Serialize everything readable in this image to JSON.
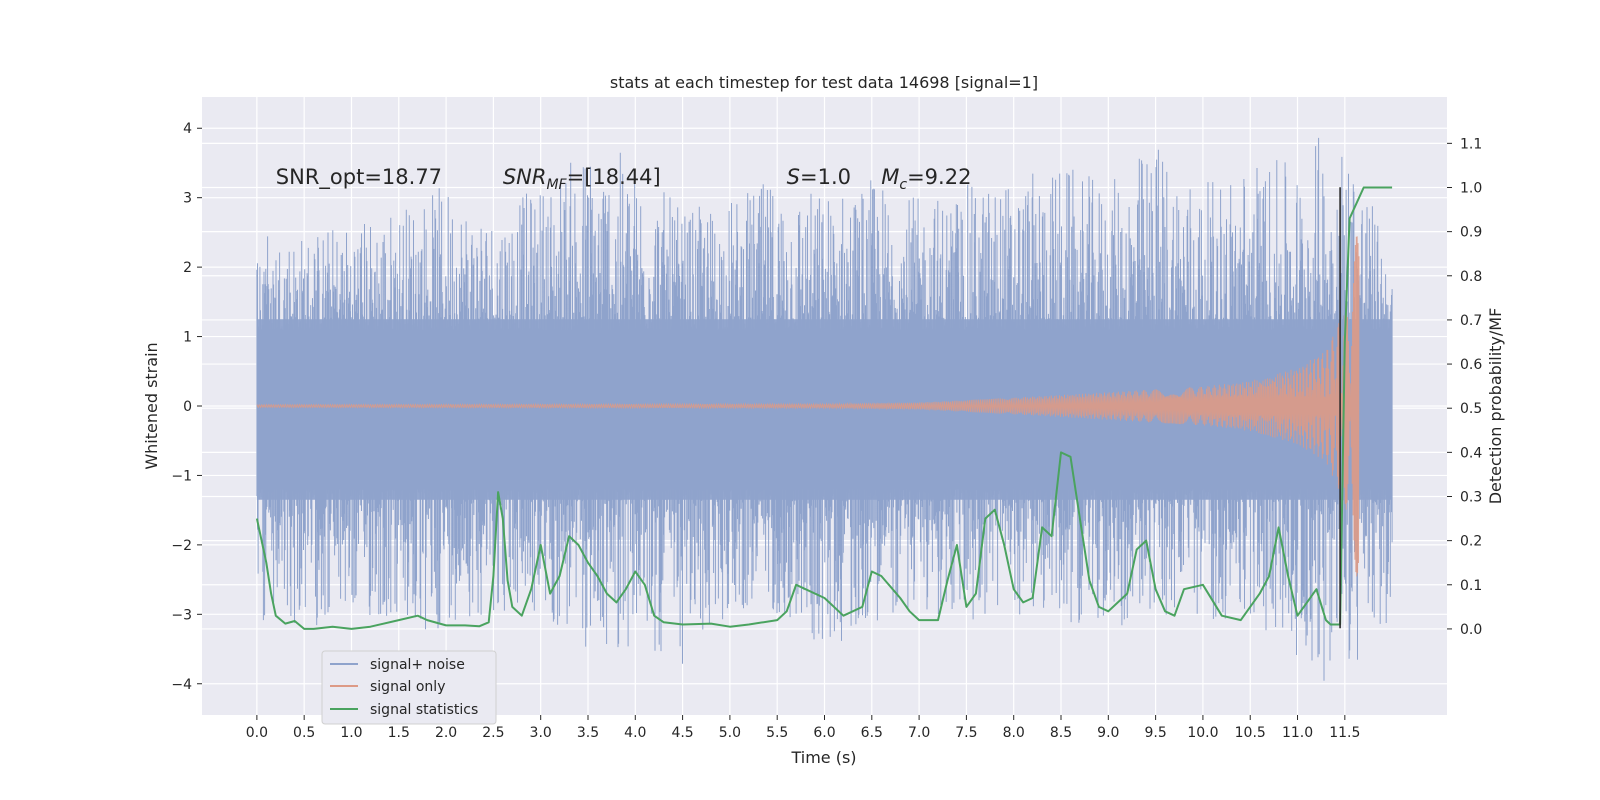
{
  "chart_data": {
    "type": "line",
    "title": "stats at each timestep for test data 14698 [signal=1]",
    "xlabel": "Time (s)",
    "ylabel_left": "Whitened strain",
    "ylabel_right": "Detection probability/MF",
    "xlim": [
      -0.58,
      12.58
    ],
    "ylim_left": [
      -4.45,
      4.45
    ],
    "ylim_right": [
      -0.195,
      1.205
    ],
    "x_ticks": [
      0.0,
      0.5,
      1.0,
      1.5,
      2.0,
      2.5,
      3.0,
      3.5,
      4.0,
      4.5,
      5.0,
      5.5,
      6.0,
      6.5,
      7.0,
      7.5,
      8.0,
      8.5,
      9.0,
      9.5,
      10.0,
      10.5,
      11.0,
      11.5
    ],
    "x_tick_labels": [
      "0.0",
      "0.5",
      "1.0",
      "1.5",
      "2.0",
      "2.5",
      "3.0",
      "3.5",
      "4.0",
      "4.5",
      "5.0",
      "5.5",
      "6.0",
      "6.5",
      "7.0",
      "7.5",
      "8.0",
      "8.5",
      "9.0",
      "9.5",
      "10.0",
      "10.5",
      "11.0",
      "11.5"
    ],
    "y_left_ticks": [
      -4,
      -3,
      -2,
      -1,
      0,
      1,
      2,
      3,
      4
    ],
    "y_left_tick_labels": [
      "−4",
      "−3",
      "−2",
      "−1",
      "0",
      "1",
      "2",
      "3",
      "4"
    ],
    "y_right_ticks": [
      0.0,
      0.1,
      0.2,
      0.3,
      0.4,
      0.5,
      0.6,
      0.7,
      0.8,
      0.9,
      1.0,
      1.1
    ],
    "y_right_tick_labels": [
      "0.0",
      "0.1",
      "0.2",
      "0.3",
      "0.4",
      "0.5",
      "0.6",
      "0.7",
      "0.8",
      "0.9",
      "1.0",
      "1.1"
    ],
    "grid": true,
    "legend_position": "lower-left",
    "series": [
      {
        "name": "signal+ noise",
        "axis": "left",
        "color": "#8fa3cc",
        "style": "dense noise trace",
        "x_range": [
          0.0,
          12.0
        ],
        "envelope_upper": [
          [
            0.0,
            2.6
          ],
          [
            0.5,
            2.5
          ],
          [
            1.0,
            2.7
          ],
          [
            1.5,
            2.9
          ],
          [
            2.0,
            3.2
          ],
          [
            2.5,
            2.8
          ],
          [
            3.0,
            3.2
          ],
          [
            3.5,
            3.8
          ],
          [
            4.0,
            3.6
          ],
          [
            4.5,
            2.8
          ],
          [
            5.0,
            3.0
          ],
          [
            5.5,
            3.3
          ],
          [
            6.0,
            3.1
          ],
          [
            6.5,
            3.3
          ],
          [
            7.0,
            3.0
          ],
          [
            7.5,
            3.2
          ],
          [
            8.0,
            3.3
          ],
          [
            8.5,
            3.5
          ],
          [
            9.0,
            3.2
          ],
          [
            9.5,
            3.9
          ],
          [
            10.0,
            3.2
          ],
          [
            10.5,
            3.6
          ],
          [
            11.0,
            3.5
          ],
          [
            11.3,
            4.1
          ],
          [
            11.6,
            3.8
          ],
          [
            12.0,
            2.0
          ]
        ],
        "envelope_lower": [
          [
            0.0,
            -3.3
          ],
          [
            0.5,
            -3.2
          ],
          [
            1.0,
            -3.1
          ],
          [
            1.5,
            -3.2
          ],
          [
            1.75,
            -3.6
          ],
          [
            2.0,
            -3.1
          ],
          [
            2.5,
            -3.0
          ],
          [
            3.0,
            -3.1
          ],
          [
            3.5,
            -3.6
          ],
          [
            4.0,
            -3.5
          ],
          [
            4.5,
            -3.8
          ],
          [
            5.0,
            -3.0
          ],
          [
            5.5,
            -3.0
          ],
          [
            6.0,
            -3.6
          ],
          [
            6.5,
            -3.1
          ],
          [
            7.0,
            -3.0
          ],
          [
            7.5,
            -3.2
          ],
          [
            8.0,
            -3.0
          ],
          [
            8.5,
            -3.1
          ],
          [
            9.0,
            -3.2
          ],
          [
            9.5,
            -3.1
          ],
          [
            10.0,
            -3.1
          ],
          [
            10.5,
            -3.1
          ],
          [
            11.0,
            -3.6
          ],
          [
            11.3,
            -4.0
          ],
          [
            11.6,
            -3.9
          ],
          [
            12.0,
            -3.2
          ]
        ]
      },
      {
        "name": "signal only",
        "axis": "left",
        "color": "#dd9a86",
        "style": "chirp oscillation",
        "x_range": [
          0.0,
          11.65
        ],
        "envelope": [
          [
            0.0,
            0.02
          ],
          [
            6.0,
            0.03
          ],
          [
            7.0,
            0.05
          ],
          [
            8.0,
            0.12
          ],
          [
            9.0,
            0.2
          ],
          [
            10.0,
            0.28
          ],
          [
            10.5,
            0.36
          ],
          [
            11.0,
            0.55
          ],
          [
            11.3,
            0.8
          ],
          [
            11.5,
            1.4
          ],
          [
            11.6,
            2.2
          ],
          [
            11.65,
            2.8
          ]
        ]
      },
      {
        "name": "signal statistics",
        "axis": "right",
        "color": "#4aa35f",
        "x": [
          0.0,
          0.1,
          0.15,
          0.2,
          0.3,
          0.4,
          0.5,
          0.6,
          0.8,
          1.0,
          1.2,
          1.5,
          1.7,
          1.8,
          2.0,
          2.2,
          2.35,
          2.45,
          2.5,
          2.55,
          2.6,
          2.65,
          2.7,
          2.8,
          2.9,
          3.0,
          3.1,
          3.2,
          3.3,
          3.4,
          3.5,
          3.6,
          3.7,
          3.8,
          3.9,
          4.0,
          4.1,
          4.2,
          4.3,
          4.5,
          4.8,
          5.0,
          5.2,
          5.5,
          5.6,
          5.7,
          6.0,
          6.2,
          6.4,
          6.5,
          6.6,
          6.8,
          6.9,
          7.0,
          7.2,
          7.3,
          7.4,
          7.5,
          7.6,
          7.7,
          7.8,
          7.9,
          8.0,
          8.1,
          8.2,
          8.3,
          8.4,
          8.5,
          8.6,
          8.7,
          8.8,
          8.9,
          9.0,
          9.2,
          9.3,
          9.4,
          9.5,
          9.6,
          9.7,
          9.8,
          10.0,
          10.2,
          10.4,
          10.6,
          10.7,
          10.8,
          10.9,
          11.0,
          11.1,
          11.2,
          11.3,
          11.35,
          11.4,
          11.45,
          11.5,
          11.55,
          11.7,
          11.8,
          12.0
        ],
        "values": [
          0.25,
          0.15,
          0.08,
          0.03,
          0.012,
          0.018,
          0.0,
          0.0,
          0.005,
          0.0,
          0.005,
          0.02,
          0.03,
          0.02,
          0.008,
          0.008,
          0.006,
          0.015,
          0.12,
          0.31,
          0.25,
          0.11,
          0.05,
          0.03,
          0.09,
          0.19,
          0.08,
          0.12,
          0.21,
          0.19,
          0.15,
          0.12,
          0.08,
          0.06,
          0.09,
          0.13,
          0.1,
          0.03,
          0.015,
          0.01,
          0.012,
          0.005,
          0.01,
          0.02,
          0.04,
          0.1,
          0.07,
          0.03,
          0.05,
          0.13,
          0.12,
          0.07,
          0.04,
          0.02,
          0.02,
          0.11,
          0.19,
          0.05,
          0.08,
          0.25,
          0.27,
          0.19,
          0.09,
          0.06,
          0.07,
          0.23,
          0.21,
          0.4,
          0.39,
          0.25,
          0.11,
          0.05,
          0.04,
          0.08,
          0.18,
          0.2,
          0.09,
          0.04,
          0.03,
          0.09,
          0.1,
          0.03,
          0.02,
          0.08,
          0.12,
          0.23,
          0.12,
          0.03,
          0.06,
          0.09,
          0.02,
          0.01,
          0.01,
          0.01,
          0.65,
          0.93,
          1.0,
          1.0,
          1.0
        ]
      }
    ],
    "vertical_marker": {
      "x": 11.45,
      "y_from": -3.2,
      "y_to": 3.15,
      "color": "#2d2d2d"
    },
    "annotations": [
      {
        "text": "SNR_opt=18.77",
        "x": 0.2,
        "y": 3.2
      },
      {
        "text": "SNR",
        "sub": "MF",
        "suffix": "=[18.44]",
        "x": 2.6,
        "y": 3.2
      },
      {
        "text": "S",
        "suffix": "=1.0",
        "x": 5.6,
        "y": 3.2
      },
      {
        "text": "M",
        "sub": "c",
        "suffix": "=9.22",
        "x": 6.6,
        "y": 3.2
      }
    ]
  }
}
